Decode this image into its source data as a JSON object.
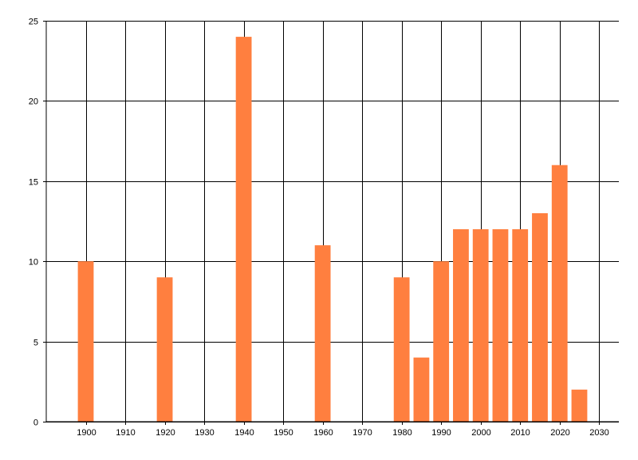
{
  "chart_data": {
    "type": "bar",
    "title": "",
    "xlabel": "",
    "ylabel": "",
    "x": [
      1900,
      1920,
      1940,
      1960,
      1980,
      1985,
      1990,
      1995,
      2000,
      2005,
      2010,
      2015,
      2020,
      2025
    ],
    "values": [
      10,
      9,
      24,
      11,
      9,
      4,
      10,
      12,
      12,
      12,
      12,
      13,
      16,
      2
    ],
    "xlim": [
      1890,
      2035
    ],
    "ylim": [
      0,
      25
    ],
    "xticks": [
      1900,
      1910,
      1920,
      1930,
      1940,
      1950,
      1960,
      1970,
      1980,
      1990,
      2000,
      2010,
      2020,
      2030
    ],
    "yticks": [
      0,
      5,
      10,
      15,
      20,
      25
    ],
    "grid": true,
    "bar_color": "#FF7F3F",
    "grid_color": "#000000",
    "legend": "none"
  }
}
